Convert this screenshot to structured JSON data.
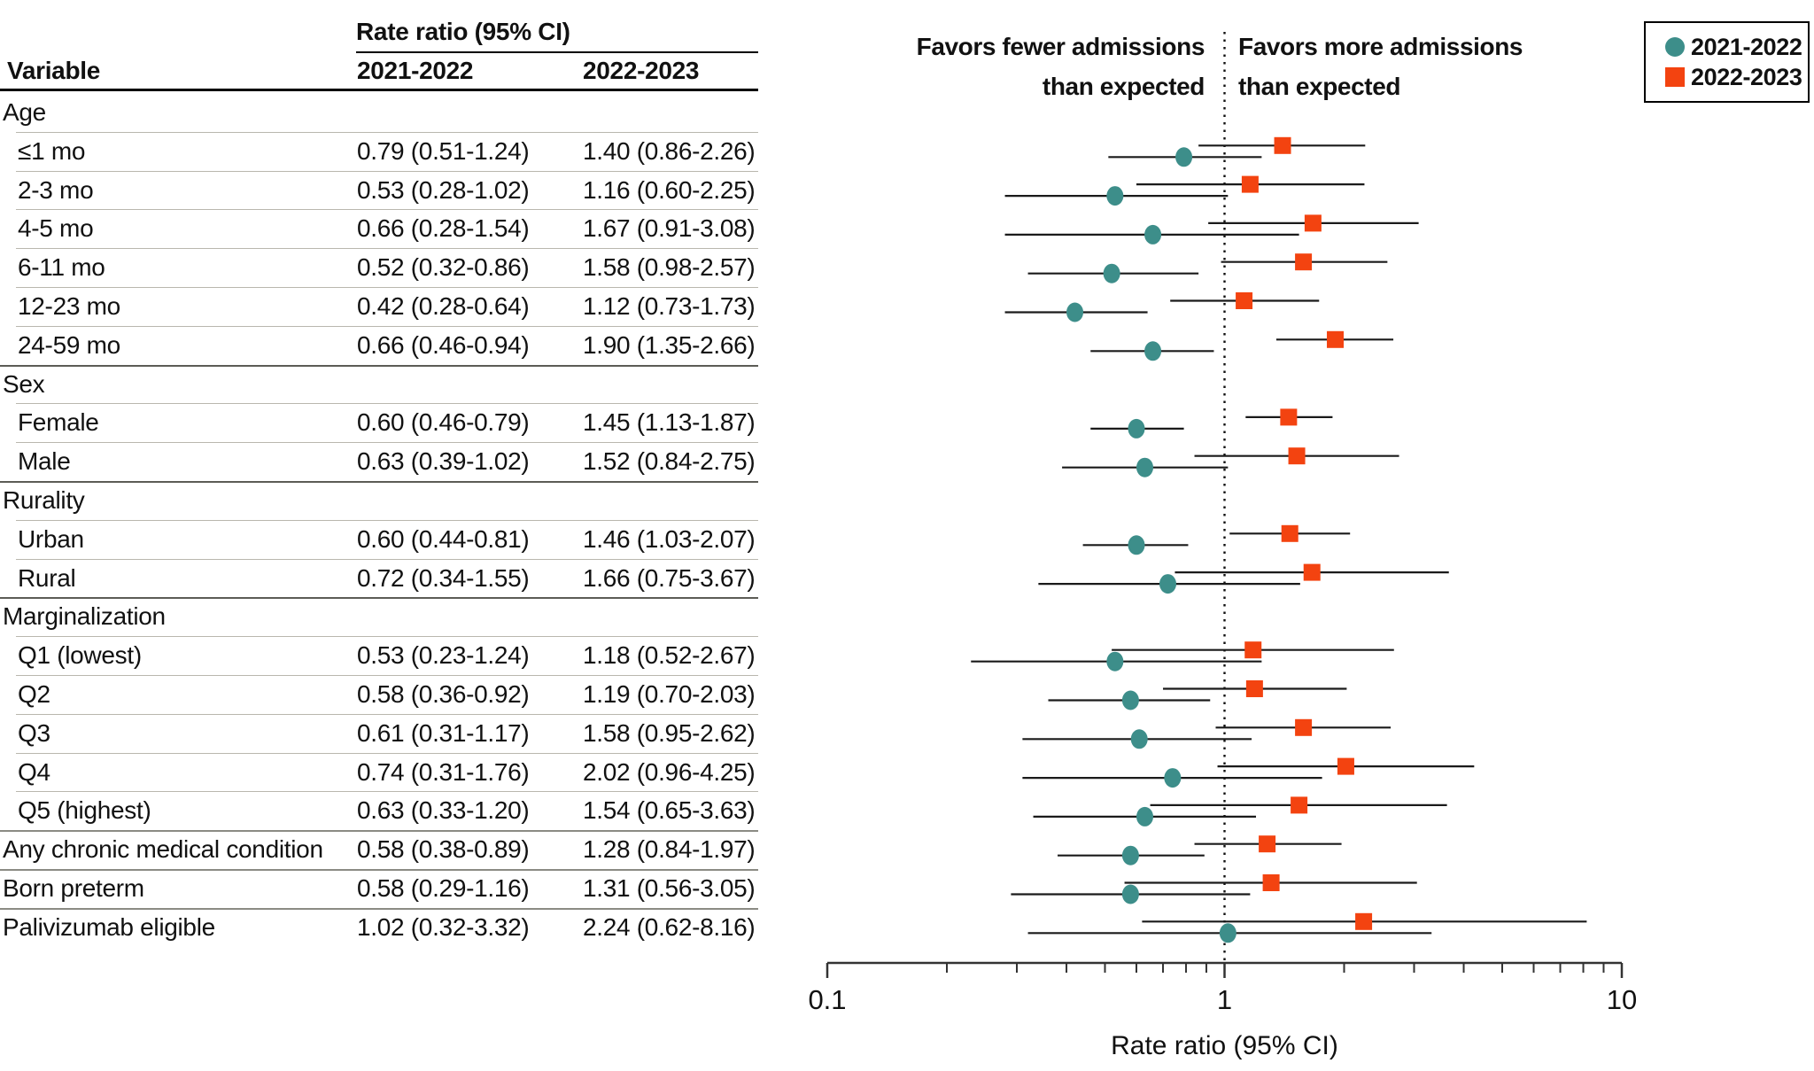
{
  "table": {
    "header_group": "Rate ratio (95% CI)",
    "col_variable": "Variable",
    "columns": [
      "2021-2022",
      "2022-2023"
    ],
    "rows": [
      {
        "type": "group",
        "label": "Age"
      },
      {
        "type": "data",
        "indent": true,
        "label": "≤1 mo",
        "rr1": "0.79 (0.51-1.24)",
        "rr2": "1.40 (0.86-2.26)"
      },
      {
        "type": "data",
        "indent": true,
        "label": "2-3 mo",
        "rr1": "0.53 (0.28-1.02)",
        "rr2": "1.16 (0.60-2.25)"
      },
      {
        "type": "data",
        "indent": true,
        "label": "4-5 mo",
        "rr1": "0.66 (0.28-1.54)",
        "rr2": "1.67 (0.91-3.08)"
      },
      {
        "type": "data",
        "indent": true,
        "label": "6-11 mo",
        "rr1": "0.52 (0.32-0.86)",
        "rr2": "1.58 (0.98-2.57)"
      },
      {
        "type": "data",
        "indent": true,
        "label": "12-23 mo",
        "rr1": "0.42 (0.28-0.64)",
        "rr2": "1.12 (0.73-1.73)"
      },
      {
        "type": "data",
        "indent": true,
        "label": "24-59 mo",
        "rr1": "0.66 (0.46-0.94)",
        "rr2": "1.90 (1.35-2.66)"
      },
      {
        "type": "group",
        "label": "Sex"
      },
      {
        "type": "data",
        "indent": true,
        "label": "Female",
        "rr1": "0.60 (0.46-0.79)",
        "rr2": "1.45 (1.13-1.87)"
      },
      {
        "type": "data",
        "indent": true,
        "label": "Male",
        "rr1": "0.63 (0.39-1.02)",
        "rr2": "1.52 (0.84-2.75)"
      },
      {
        "type": "group",
        "label": "Rurality"
      },
      {
        "type": "data",
        "indent": true,
        "label": "Urban",
        "rr1": "0.60 (0.44-0.81)",
        "rr2": "1.46 (1.03-2.07)"
      },
      {
        "type": "data",
        "indent": true,
        "label": "Rural",
        "rr1": "0.72 (0.34-1.55)",
        "rr2": "1.66 (0.75-3.67)"
      },
      {
        "type": "group",
        "label": "Marginalization"
      },
      {
        "type": "data",
        "indent": true,
        "label": "Q1 (lowest)",
        "rr1": "0.53 (0.23-1.24)",
        "rr2": "1.18 (0.52-2.67)"
      },
      {
        "type": "data",
        "indent": true,
        "label": "Q2",
        "rr1": "0.58 (0.36-0.92)",
        "rr2": "1.19 (0.70-2.03)"
      },
      {
        "type": "data",
        "indent": true,
        "label": "Q3",
        "rr1": "0.61 (0.31-1.17)",
        "rr2": "1.58 (0.95-2.62)"
      },
      {
        "type": "data",
        "indent": true,
        "label": "Q4",
        "rr1": "0.74 (0.31-1.76)",
        "rr2": "2.02 (0.96-4.25)"
      },
      {
        "type": "data",
        "indent": true,
        "label": "Q5 (highest)",
        "rr1": "0.63 (0.33-1.20)",
        "rr2": "1.54 (0.65-3.63)"
      },
      {
        "type": "data",
        "indent": false,
        "label": "Any chronic medical condition",
        "rr1": "0.58 (0.38-0.89)",
        "rr2": "1.28 (0.84-1.97)"
      },
      {
        "type": "data",
        "indent": false,
        "label": "Born preterm",
        "rr1": "0.58 (0.29-1.16)",
        "rr2": "1.31 (0.56-3.05)"
      },
      {
        "type": "data",
        "indent": false,
        "label": "Palivizumab eligible",
        "rr1": "1.02 (0.32-3.32)",
        "rr2": "2.24 (0.62-8.16)"
      }
    ]
  },
  "chart_data": {
    "type": "forest",
    "xlabel": "Rate ratio (95% CI)",
    "x_scale": "log",
    "xlim": [
      0.1,
      10
    ],
    "x_major_ticks": [
      0.1,
      1,
      10
    ],
    "x_major_tick_labels": [
      "0.1",
      "1",
      "10"
    ],
    "x_minor_ticks": [
      0.2,
      0.3,
      0.4,
      0.5,
      0.6,
      0.7,
      0.8,
      0.9,
      2,
      3,
      4,
      5,
      6,
      7,
      8,
      9
    ],
    "reference_line": 1,
    "grid": false,
    "favors_left": [
      "Favors fewer admissions",
      "than expected"
    ],
    "favors_right": [
      "Favors more admissions",
      "than expected"
    ],
    "legend": {
      "position": "top-right",
      "entries": [
        {
          "label": "2021-2022",
          "marker": "circle",
          "color": "#3d8e8a"
        },
        {
          "label": "2022-2023",
          "marker": "square",
          "color": "#f34310"
        }
      ]
    },
    "categories": [
      "≤1 mo",
      "2-3 mo",
      "4-5 mo",
      "6-11 mo",
      "12-23 mo",
      "24-59 mo",
      "Female",
      "Male",
      "Urban",
      "Rural",
      "Q1 (lowest)",
      "Q2",
      "Q3",
      "Q4",
      "Q5 (highest)",
      "Any chronic medical condition",
      "Born preterm",
      "Palivizumab eligible"
    ],
    "series": [
      {
        "name": "2021-2022",
        "marker": "circle",
        "color": "#3d8e8a",
        "values": [
          [
            0.79,
            0.51,
            1.24
          ],
          [
            0.53,
            0.28,
            1.02
          ],
          [
            0.66,
            0.28,
            1.54
          ],
          [
            0.52,
            0.32,
            0.86
          ],
          [
            0.42,
            0.28,
            0.64
          ],
          [
            0.66,
            0.46,
            0.94
          ],
          [
            0.6,
            0.46,
            0.79
          ],
          [
            0.63,
            0.39,
            1.02
          ],
          [
            0.6,
            0.44,
            0.81
          ],
          [
            0.72,
            0.34,
            1.55
          ],
          [
            0.53,
            0.23,
            1.24
          ],
          [
            0.58,
            0.36,
            0.92
          ],
          [
            0.61,
            0.31,
            1.17
          ],
          [
            0.74,
            0.31,
            1.76
          ],
          [
            0.63,
            0.33,
            1.2
          ],
          [
            0.58,
            0.38,
            0.89
          ],
          [
            0.58,
            0.29,
            1.16
          ],
          [
            1.02,
            0.32,
            3.32
          ]
        ]
      },
      {
        "name": "2022-2023",
        "marker": "square",
        "color": "#f34310",
        "values": [
          [
            1.4,
            0.86,
            2.26
          ],
          [
            1.16,
            0.6,
            2.25
          ],
          [
            1.67,
            0.91,
            3.08
          ],
          [
            1.58,
            0.98,
            2.57
          ],
          [
            1.12,
            0.73,
            1.73
          ],
          [
            1.9,
            1.35,
            2.66
          ],
          [
            1.45,
            1.13,
            1.87
          ],
          [
            1.52,
            0.84,
            2.75
          ],
          [
            1.46,
            1.03,
            2.07
          ],
          [
            1.66,
            0.75,
            3.67
          ],
          [
            1.18,
            0.52,
            2.67
          ],
          [
            1.19,
            0.7,
            2.03
          ],
          [
            1.58,
            0.95,
            2.62
          ],
          [
            2.02,
            0.96,
            4.25
          ],
          [
            1.54,
            0.65,
            3.63
          ],
          [
            1.28,
            0.84,
            1.97
          ],
          [
            1.31,
            0.56,
            3.05
          ],
          [
            2.24,
            0.62,
            8.16
          ]
        ]
      }
    ]
  }
}
